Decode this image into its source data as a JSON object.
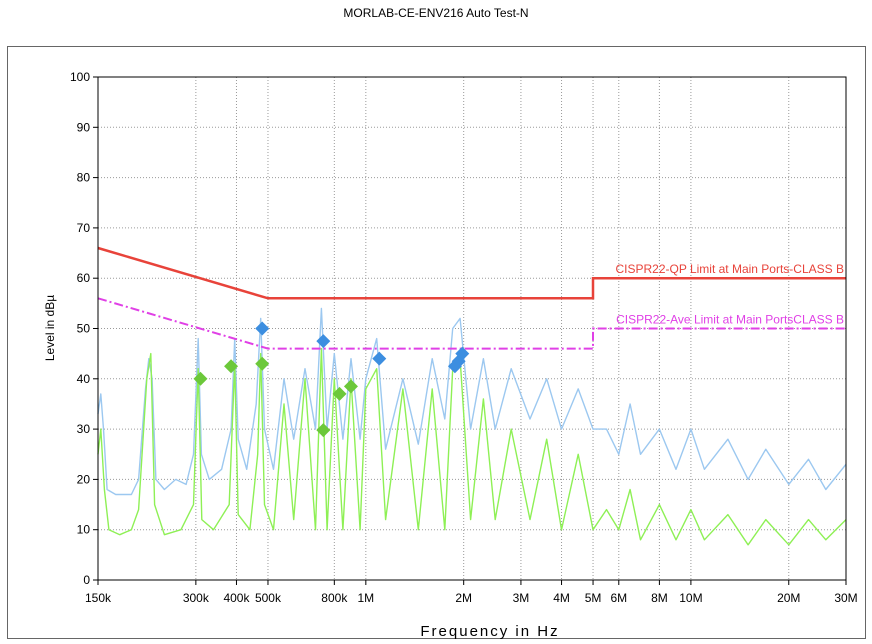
{
  "title": "MORLAB-CE-ENV216 Auto Test-N",
  "chart_data": {
    "type": "line",
    "xlabel": "Frequency in Hz",
    "ylabel": "Level in dBµ",
    "x_scale": "log",
    "xlim": [
      150000,
      30000000
    ],
    "ylim": [
      0,
      100
    ],
    "grid": true,
    "x_ticks": [
      {
        "v": 150000,
        "label": "150k"
      },
      {
        "v": 300000,
        "label": "300k"
      },
      {
        "v": 400000,
        "label": "400k"
      },
      {
        "v": 500000,
        "label": "500k"
      },
      {
        "v": 800000,
        "label": "800k"
      },
      {
        "v": 1000000,
        "label": "1M"
      },
      {
        "v": 2000000,
        "label": "2M"
      },
      {
        "v": 3000000,
        "label": "3M"
      },
      {
        "v": 4000000,
        "label": "4M"
      },
      {
        "v": 5000000,
        "label": "5M"
      },
      {
        "v": 6000000,
        "label": "6M"
      },
      {
        "v": 8000000,
        "label": "8M"
      },
      {
        "v": 10000000,
        "label": "10M"
      },
      {
        "v": 20000000,
        "label": "20M"
      },
      {
        "v": 30000000,
        "label": "30M"
      }
    ],
    "y_ticks": [
      0,
      10,
      20,
      30,
      40,
      50,
      60,
      70,
      80,
      90,
      100
    ],
    "limits": [
      {
        "name": "CISPR22-QP Limit at Main Ports-CLASS B",
        "color": "#e8433a",
        "points": [
          [
            150000,
            66
          ],
          [
            500000,
            56
          ],
          [
            5000000,
            56
          ],
          [
            5000000,
            60
          ],
          [
            30000000,
            60
          ]
        ]
      },
      {
        "name": "CISPR22-Ave Limit at Main PortsCLASS B",
        "color": "#e040e6",
        "points": [
          [
            150000,
            56
          ],
          [
            500000,
            46
          ],
          [
            5000000,
            46
          ],
          [
            5000000,
            50
          ],
          [
            30000000,
            50
          ]
        ]
      }
    ],
    "series": [
      {
        "color": "#9cc8f0",
        "points": [
          [
            150000,
            33
          ],
          [
            153000,
            37
          ],
          [
            156000,
            30
          ],
          [
            160000,
            18
          ],
          [
            170000,
            17
          ],
          [
            180000,
            17
          ],
          [
            190000,
            17
          ],
          [
            200000,
            20
          ],
          [
            210000,
            38
          ],
          [
            215000,
            44
          ],
          [
            220000,
            40
          ],
          [
            226000,
            20
          ],
          [
            240000,
            18
          ],
          [
            260000,
            20
          ],
          [
            280000,
            19
          ],
          [
            295000,
            25
          ],
          [
            305000,
            48
          ],
          [
            312000,
            25
          ],
          [
            330000,
            20
          ],
          [
            360000,
            22
          ],
          [
            385000,
            30
          ],
          [
            395000,
            48
          ],
          [
            405000,
            28
          ],
          [
            430000,
            22
          ],
          [
            460000,
            35
          ],
          [
            475000,
            52
          ],
          [
            488000,
            30
          ],
          [
            520000,
            22
          ],
          [
            560000,
            40
          ],
          [
            600000,
            28
          ],
          [
            650000,
            42
          ],
          [
            700000,
            30
          ],
          [
            730000,
            54
          ],
          [
            760000,
            30
          ],
          [
            800000,
            45
          ],
          [
            850000,
            28
          ],
          [
            900000,
            44
          ],
          [
            960000,
            28
          ],
          [
            1000000,
            40
          ],
          [
            1080000,
            48
          ],
          [
            1150000,
            26
          ],
          [
            1300000,
            40
          ],
          [
            1450000,
            27
          ],
          [
            1600000,
            44
          ],
          [
            1750000,
            32
          ],
          [
            1850000,
            50
          ],
          [
            1950000,
            52
          ],
          [
            2100000,
            30
          ],
          [
            2300000,
            44
          ],
          [
            2500000,
            30
          ],
          [
            2800000,
            42
          ],
          [
            3200000,
            32
          ],
          [
            3600000,
            40
          ],
          [
            4000000,
            30
          ],
          [
            4500000,
            38
          ],
          [
            5000000,
            30
          ],
          [
            5500000,
            30
          ],
          [
            6000000,
            25
          ],
          [
            6500000,
            35
          ],
          [
            7000000,
            25
          ],
          [
            8000000,
            30
          ],
          [
            9000000,
            22
          ],
          [
            10000000,
            30
          ],
          [
            11000000,
            22
          ],
          [
            13000000,
            28
          ],
          [
            15000000,
            20
          ],
          [
            17000000,
            26
          ],
          [
            20000000,
            19
          ],
          [
            23000000,
            24
          ],
          [
            26000000,
            18
          ],
          [
            30000000,
            23
          ]
        ]
      },
      {
        "color": "#8ef055",
        "points": [
          [
            150000,
            25
          ],
          [
            153000,
            30
          ],
          [
            157000,
            18
          ],
          [
            162000,
            10
          ],
          [
            175000,
            9
          ],
          [
            190000,
            10
          ],
          [
            200000,
            14
          ],
          [
            212000,
            40
          ],
          [
            218000,
            45
          ],
          [
            224000,
            15
          ],
          [
            240000,
            9
          ],
          [
            270000,
            10
          ],
          [
            295000,
            15
          ],
          [
            305000,
            42
          ],
          [
            313000,
            12
          ],
          [
            340000,
            10
          ],
          [
            380000,
            15
          ],
          [
            395000,
            43
          ],
          [
            405000,
            13
          ],
          [
            440000,
            10
          ],
          [
            465000,
            25
          ],
          [
            475000,
            45
          ],
          [
            488000,
            15
          ],
          [
            520000,
            10
          ],
          [
            560000,
            35
          ],
          [
            600000,
            12
          ],
          [
            650000,
            40
          ],
          [
            700000,
            10
          ],
          [
            730000,
            46
          ],
          [
            760000,
            10
          ],
          [
            800000,
            40
          ],
          [
            850000,
            10
          ],
          [
            900000,
            40
          ],
          [
            960000,
            10
          ],
          [
            1000000,
            38
          ],
          [
            1080000,
            42
          ],
          [
            1150000,
            12
          ],
          [
            1300000,
            38
          ],
          [
            1450000,
            10
          ],
          [
            1600000,
            38
          ],
          [
            1750000,
            10
          ],
          [
            1850000,
            42
          ],
          [
            1950000,
            44
          ],
          [
            2100000,
            12
          ],
          [
            2300000,
            36
          ],
          [
            2500000,
            12
          ],
          [
            2800000,
            30
          ],
          [
            3200000,
            12
          ],
          [
            3600000,
            28
          ],
          [
            4000000,
            10
          ],
          [
            4500000,
            25
          ],
          [
            5000000,
            10
          ],
          [
            5500000,
            14
          ],
          [
            6000000,
            10
          ],
          [
            6500000,
            18
          ],
          [
            7000000,
            8
          ],
          [
            8000000,
            15
          ],
          [
            9000000,
            8
          ],
          [
            10000000,
            14
          ],
          [
            11000000,
            8
          ],
          [
            13000000,
            13
          ],
          [
            15000000,
            7
          ],
          [
            17000000,
            12
          ],
          [
            20000000,
            7
          ],
          [
            23000000,
            12
          ],
          [
            26000000,
            8
          ],
          [
            30000000,
            12
          ]
        ]
      }
    ],
    "markers": [
      {
        "color": "#3c8ee0",
        "points": [
          [
            480000,
            50
          ],
          [
            740000,
            47.5
          ],
          [
            1100000,
            44
          ],
          [
            1880000,
            42.5
          ],
          [
            1930000,
            43.5
          ],
          [
            1980000,
            45
          ]
        ]
      },
      {
        "color": "#6cc83a",
        "points": [
          [
            310000,
            40
          ],
          [
            385000,
            42.5
          ],
          [
            480000,
            43
          ],
          [
            740000,
            29.8
          ],
          [
            830000,
            37
          ],
          [
            900000,
            38.5
          ]
        ]
      }
    ]
  }
}
